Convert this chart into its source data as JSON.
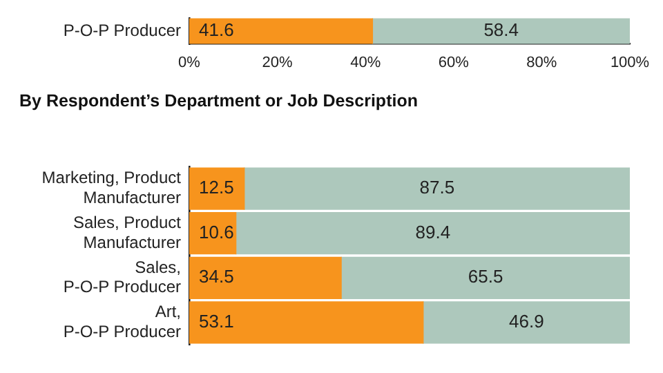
{
  "chart_data": [
    {
      "type": "bar",
      "orientation": "horizontal",
      "stacked": true,
      "categories": [
        "P-O-P Producer"
      ],
      "series": [
        {
          "color": "#f7941d",
          "values": [
            41.6
          ]
        },
        {
          "color": "#adc8bc",
          "values": [
            58.4
          ]
        }
      ],
      "xlim": [
        0,
        100
      ],
      "xticks": [
        {
          "value": 0,
          "label": "0%"
        },
        {
          "value": 20,
          "label": "20%"
        },
        {
          "value": 40,
          "label": "40%"
        },
        {
          "value": 60,
          "label": "60%"
        },
        {
          "value": 80,
          "label": "80%"
        },
        {
          "value": 100,
          "label": "100%"
        }
      ],
      "grid": false,
      "data_labels": true
    },
    {
      "type": "bar",
      "orientation": "horizontal",
      "stacked": true,
      "title": "By Respondent’s Department or Job Description",
      "categories": [
        "Marketing, Product\nManufacturer",
        "Sales, Product\nManufacturer",
        "Sales,\nP-O-P Producer",
        "Art,\nP-O-P Producer"
      ],
      "series": [
        {
          "color": "#f7941d",
          "values": [
            12.5,
            10.6,
            34.5,
            53.1
          ]
        },
        {
          "color": "#adc8bc",
          "values": [
            87.5,
            89.4,
            65.5,
            46.9
          ]
        }
      ],
      "xlim": [
        0,
        100
      ],
      "tick_labels": "y",
      "grid": false,
      "data_labels": true
    }
  ]
}
